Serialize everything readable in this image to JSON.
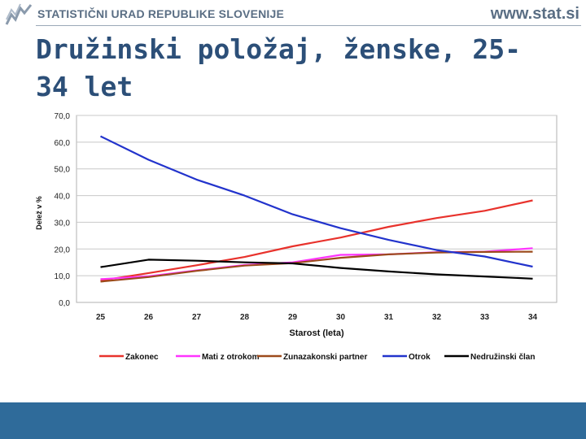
{
  "header": {
    "org_name": "STATISTIČNI URAD REPUBLIKE SLOVENIJE",
    "site_url": "www.stat.si",
    "logo_icon": "surs-logo-icon"
  },
  "title": "Družinski položaj, ženske, 25-34 let",
  "colors": {
    "title": "#2c4f78",
    "header_text": "#5a6e84",
    "footer": "#2f6b9a",
    "grid": "#c8c8c8"
  },
  "chart_data": {
    "type": "line",
    "xlabel": "Starost (leta)",
    "ylabel": "Delež v %",
    "x": [
      "25",
      "26",
      "27",
      "28",
      "29",
      "30",
      "31",
      "32",
      "33",
      "34"
    ],
    "ylim": [
      0,
      70
    ],
    "yticks": [
      "0,0",
      "10,0",
      "20,0",
      "30,0",
      "40,0",
      "50,0",
      "60,0",
      "70,0"
    ],
    "grid": true,
    "legend": "bottom",
    "series": [
      {
        "name": "Zakonec",
        "color": "#e8322c",
        "values": [
          8.2,
          11.0,
          13.9,
          17.0,
          21.0,
          24.3,
          28.3,
          31.6,
          34.3,
          38.2
        ]
      },
      {
        "name": "Mati z otrokom",
        "color": "#ff33ff",
        "values": [
          8.7,
          9.8,
          12.0,
          14.0,
          15.0,
          17.8,
          18.0,
          18.8,
          19.0,
          20.3
        ]
      },
      {
        "name": "Zunazakonski partner",
        "color": "#9c4a1c",
        "values": [
          7.8,
          9.5,
          11.8,
          13.8,
          14.7,
          16.7,
          18.0,
          18.7,
          18.9,
          19.0
        ]
      },
      {
        "name": "Otrok",
        "color": "#2233cc",
        "values": [
          62.2,
          53.4,
          46.0,
          40.0,
          33.0,
          27.8,
          23.4,
          19.6,
          17.2,
          13.4
        ]
      },
      {
        "name": "Nedružinski član",
        "color": "#000000",
        "values": [
          13.2,
          16.0,
          15.6,
          15.0,
          14.6,
          12.9,
          11.6,
          10.5,
          9.7,
          8.9
        ]
      }
    ]
  }
}
